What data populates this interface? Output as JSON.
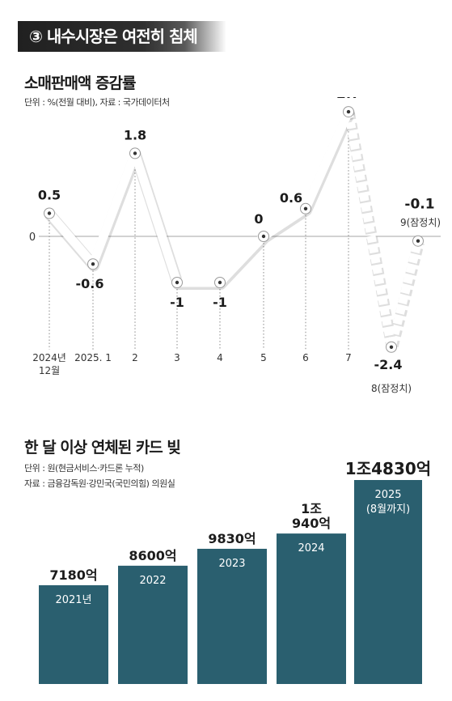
{
  "header": {
    "title": "③ 내수시장은 여전히 침체"
  },
  "colors": {
    "bar": "#2a5f6f",
    "line": "#ffffff",
    "zero_line": "#b8b8b8",
    "banner": "#222222"
  },
  "chart_data": [
    {
      "type": "line",
      "title": "소매판매액 증감률",
      "unit_note": "단위 : %(전월 대비), 자료 : 국가데이터처",
      "zero_label": "0",
      "categories": [
        "2024년 12월",
        "2025. 1",
        "2",
        "3",
        "4",
        "5",
        "6",
        "7",
        "8(잠정치)",
        "9(잠정치)"
      ],
      "x_labels": [
        "2024년",
        "12월",
        "2025. 1",
        "2",
        "3",
        "4",
        "5",
        "6",
        "7"
      ],
      "values": [
        0.5,
        -0.6,
        1.8,
        -1,
        -1,
        0,
        0.6,
        2.7,
        -2.4,
        -0.1
      ],
      "value_labels": [
        "0.5",
        "-0.6",
        "1.8",
        "-1",
        "-1",
        "0",
        "0.6",
        "2.7",
        "-2.4",
        "-0.1"
      ],
      "provisional_labels": [
        "8(잠정치)",
        "9(잠정치)"
      ],
      "provisional_from_index": 7,
      "ylim": [
        -3,
        3
      ]
    },
    {
      "type": "bar",
      "title": "한 달 이상 연체된 카드 빚",
      "unit_note": "단위 : 원(현금서비스·카드론 누적)",
      "source_note": "자료 : 금융감독원·강민국(국민의힘) 의원실",
      "categories": [
        "2021년",
        "2022",
        "2023",
        "2024",
        "2025"
      ],
      "category_sublabel": "(8월까지)",
      "values": [
        7180,
        8600,
        9830,
        10940,
        14830
      ],
      "value_units": "억 원",
      "value_labels": [
        "7180억",
        "8600억",
        "9830억",
        "1조 940억",
        "1조4830억"
      ],
      "value_label_lines": [
        [
          "7180억"
        ],
        [
          "8600억"
        ],
        [
          "9830억"
        ],
        [
          "1조",
          "940억"
        ],
        [
          "1조4830억"
        ]
      ]
    }
  ]
}
